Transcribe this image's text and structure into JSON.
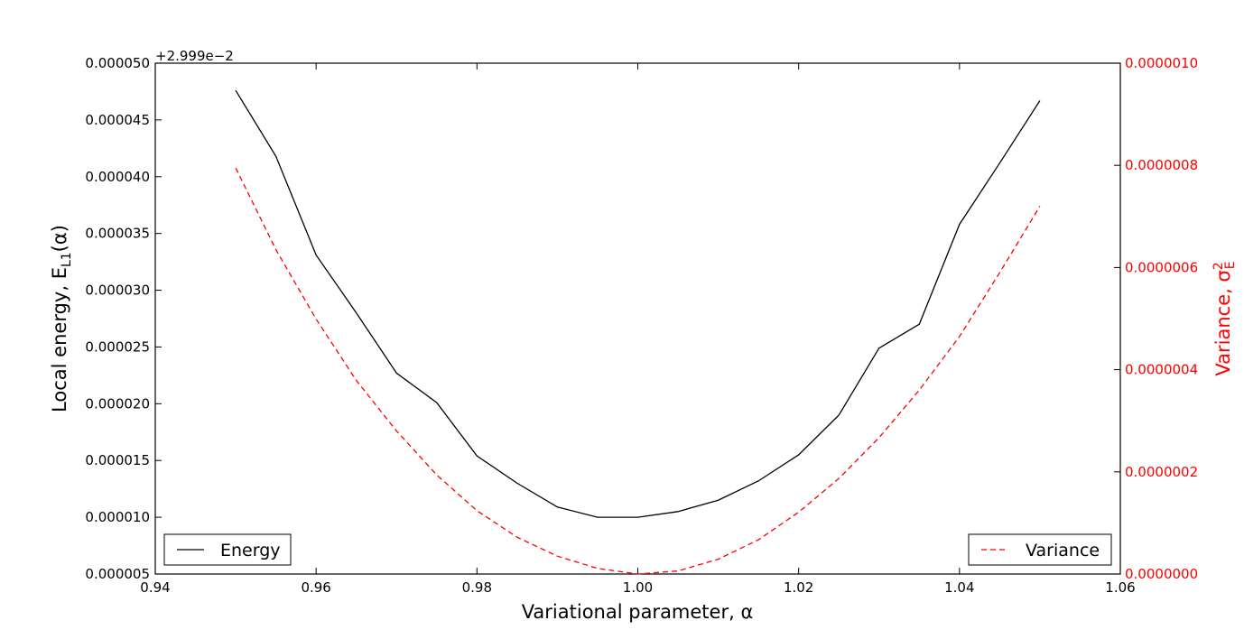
{
  "chart_data": {
    "type": "line",
    "xlabel": "Variational parameter, α",
    "ylabel_left": "Local energy, E",
    "ylabel_left_sub": "L1",
    "ylabel_left_tail": "(α)",
    "ylabel_right": "Variance, σ",
    "ylabel_right_sup": "2",
    "ylabel_right_sub": "E",
    "left_offset_text": "+2.999e−2",
    "xlim": [
      0.94,
      1.06
    ],
    "ylim_left": [
      5e-06,
      5e-05
    ],
    "ylim_right": [
      0.0,
      1e-06
    ],
    "x_ticks": [
      "0.94",
      "0.96",
      "0.98",
      "1.00",
      "1.02",
      "1.04",
      "1.06"
    ],
    "y_left_ticks": [
      "0.000005",
      "0.000010",
      "0.000015",
      "0.000020",
      "0.000025",
      "0.000030",
      "0.000035",
      "0.000040",
      "0.000045",
      "0.000050"
    ],
    "y_right_ticks": [
      "0.0000000",
      "0.0000002",
      "0.0000004",
      "0.0000006",
      "0.0000008",
      "0.0000010"
    ],
    "x": [
      0.95,
      0.955,
      0.96,
      0.965,
      0.97,
      0.975,
      0.98,
      0.985,
      0.99,
      0.995,
      1.0,
      1.005,
      1.01,
      1.015,
      1.02,
      1.025,
      1.03,
      1.035,
      1.04,
      1.045,
      1.05
    ],
    "series": [
      {
        "name": "Energy",
        "axis": "left",
        "color": "#000000",
        "style": "solid",
        "values": [
          4.76e-05,
          4.18e-05,
          3.31e-05,
          2.8e-05,
          2.27e-05,
          2.01e-05,
          1.54e-05,
          1.3e-05,
          1.09e-05,
          1e-05,
          1e-05,
          1.05e-05,
          1.15e-05,
          1.32e-05,
          1.55e-05,
          1.9e-05,
          2.49e-05,
          2.7e-05,
          3.58e-05,
          4.12e-05,
          4.67e-05
        ]
      },
      {
        "name": "Variance",
        "axis": "right",
        "color": "#ff0000",
        "style": "dashed",
        "values": [
          7.95e-07,
          6.35e-07,
          4.99e-07,
          3.79e-07,
          2.8e-07,
          1.94e-07,
          1.24e-07,
          7.2e-08,
          3.5e-08,
          1.1e-08,
          0.0,
          6e-09,
          2.9e-08,
          6.7e-08,
          1.21e-07,
          1.87e-07,
          2.67e-07,
          3.6e-07,
          4.65e-07,
          5.9e-07,
          7.2e-07
        ]
      }
    ],
    "legend_left": "lower-left",
    "legend_right": "lower-right",
    "grid": false,
    "colors": {
      "right_axis": "#ff0000",
      "axes": "#000000"
    }
  }
}
